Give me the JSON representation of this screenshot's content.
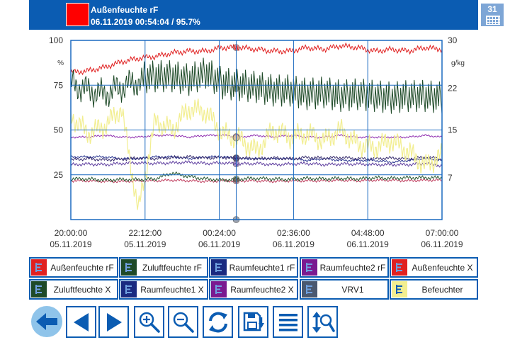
{
  "header": {
    "title": "Außenfeuchte rF",
    "subtitle": "06.11.2019 00:54:04 / 95.7%",
    "swatch_color": "#ff0000",
    "calendar_day": "31",
    "calendar_icon": "calendar-icon"
  },
  "chart_data": {
    "type": "line",
    "title": "",
    "left_axis": {
      "unit": "%",
      "range": [
        0,
        100
      ],
      "ticks": [
        "100",
        "75",
        "50",
        "25"
      ]
    },
    "right_axis": {
      "unit": "g/kg",
      "range": [
        0,
        30
      ],
      "ticks": [
        "30",
        "22",
        "15",
        "7"
      ]
    },
    "x_range": [
      "05.11.2019 20:00:00",
      "06.11.2019 07:00:00"
    ],
    "x_ticks": [
      {
        "time": "20:00:00",
        "date": "05.11.2019"
      },
      {
        "time": "22:12:00",
        "date": "05.11.2019"
      },
      {
        "time": "00:24:00",
        "date": "06.11.2019"
      },
      {
        "time": "02:36:00",
        "date": "06.11.2019"
      },
      {
        "time": "04:48:00",
        "date": "06.11.2019"
      },
      {
        "time": "07:00:00",
        "date": "06.11.2019"
      }
    ],
    "grid": true,
    "cursor_time": "06.11.2019 00:54:04",
    "series": [
      {
        "name": "Außenfeuchte rF",
        "color": "#e02020",
        "axis": "left",
        "x": [
          0,
          0.5,
          1,
          1.5,
          2,
          2.5,
          3,
          3.5,
          4,
          4.5,
          5,
          5.5,
          6,
          6.5,
          7,
          7.5,
          8,
          8.5,
          9,
          9.5,
          10,
          10.5,
          11
        ],
        "values": [
          82,
          83,
          85,
          88,
          90,
          91,
          93,
          94,
          94,
          96,
          96,
          95,
          94,
          94,
          96,
          95,
          97,
          96,
          94,
          95,
          94,
          96,
          95
        ]
      },
      {
        "name": "Zuluftfeuchte rF",
        "color": "#1e4a28",
        "axis": "left",
        "x": [
          0,
          0.5,
          1,
          1.5,
          2,
          2.5,
          3,
          3.5,
          4,
          4.5,
          5,
          5.5,
          6,
          6.5,
          7,
          7.5,
          8,
          8.5,
          9,
          9.5,
          10,
          10.5,
          11
        ],
        "values": [
          76,
          72,
          70,
          74,
          77,
          78,
          78,
          76,
          80,
          74,
          73,
          72,
          70,
          70,
          68,
          69,
          67,
          68,
          67,
          66,
          67,
          67,
          66
        ]
      },
      {
        "name": "Raumfeuchte1 rF",
        "color": "#2a3590",
        "axis": "left",
        "x": [
          0,
          0.5,
          1,
          1.5,
          2,
          2.5,
          3,
          3.5,
          4,
          4.5,
          5,
          5.5,
          6,
          6.5,
          7,
          7.5,
          8,
          8.5,
          9,
          9.5,
          10,
          10.5,
          11
        ],
        "values": [
          35,
          35,
          35,
          34,
          34,
          35,
          35,
          34,
          35,
          35,
          34,
          34,
          34,
          34,
          33,
          34,
          33,
          33,
          33,
          32,
          33,
          34,
          33
        ]
      },
      {
        "name": "Raumfeuchte2 rF",
        "color": "#9030b0",
        "axis": "left",
        "x": [
          0,
          0.5,
          1,
          1.5,
          2,
          2.5,
          3,
          3.5,
          4,
          4.5,
          5,
          5.5,
          6,
          6.5,
          7,
          7.5,
          8,
          8.5,
          9,
          9.5,
          10,
          10.5,
          11
        ],
        "values": [
          46,
          46,
          47,
          46,
          46,
          47,
          47,
          46,
          47,
          47,
          46,
          47,
          46,
          47,
          46,
          46,
          47,
          46,
          46,
          46,
          46,
          47,
          46
        ]
      },
      {
        "name": "Außenfeuchte X",
        "color": "#c04060",
        "axis": "right",
        "x": [
          0,
          0.5,
          1,
          1.5,
          2,
          2.5,
          3,
          3.5,
          4,
          4.5,
          5,
          5.5,
          6,
          6.5,
          7,
          7.5,
          8,
          8.5,
          9,
          9.5,
          10,
          10.5,
          11
        ],
        "values": [
          6.5,
          6.5,
          6.4,
          6.4,
          6.5,
          6.5,
          6.6,
          6.5,
          6.4,
          6.5,
          6.5,
          6.5,
          6.4,
          6.5,
          6.5,
          6.5,
          6.6,
          6.5,
          6.6,
          6.6,
          6.5,
          6.6,
          6.6
        ]
      },
      {
        "name": "Zuluftfeuchte X",
        "color": "#2a5a34",
        "axis": "right",
        "x": [
          0,
          0.5,
          1,
          1.5,
          2,
          2.5,
          3,
          3.5,
          4,
          4.5,
          5,
          5.5,
          6,
          6.5,
          7,
          7.5,
          8,
          8.5,
          9,
          9.5,
          10,
          10.5,
          11
        ],
        "values": [
          6.8,
          6.8,
          6.6,
          6.7,
          6.7,
          6.8,
          7.8,
          7.2,
          6.8,
          6.6,
          6.8,
          6.9,
          6.8,
          6.7,
          6.9,
          6.8,
          6.9,
          6.8,
          7.0,
          6.9,
          7.0,
          7.0,
          7.0
        ]
      },
      {
        "name": "Raumfeuchte1 X",
        "color": "#3a3070",
        "axis": "right",
        "x": [
          0,
          0.5,
          1,
          1.5,
          2,
          2.5,
          3,
          3.5,
          4,
          4.5,
          5,
          5.5,
          6,
          6.5,
          7,
          7.5,
          8,
          8.5,
          9,
          9.5,
          10,
          10.5,
          11
        ],
        "values": [
          10.0,
          10.2,
          10.0,
          10.1,
          10.3,
          10.2,
          10.4,
          10.5,
          10.3,
          10.4,
          10.3,
          10.2,
          10.3,
          10.2,
          10.4,
          10.3,
          10.4,
          10.2,
          10.2,
          10.3,
          10.2,
          10.4,
          10.2
        ]
      },
      {
        "name": "Raumfeuchte2 X",
        "color": "#6040a0",
        "axis": "right",
        "x": [
          0,
          0.5,
          1,
          1.5,
          2,
          2.5,
          3,
          3.5,
          4,
          4.5,
          5,
          5.5,
          6,
          6.5,
          7,
          7.5,
          8,
          8.5,
          9,
          9.5,
          10,
          10.5,
          11
        ],
        "values": [
          9.2,
          9.3,
          9.2,
          9.4,
          9.5,
          9.4,
          9.5,
          9.6,
          9.4,
          9.5,
          9.3,
          9.4,
          9.2,
          9.3,
          9.4,
          9.2,
          9.3,
          9.3,
          9.2,
          9.2,
          9.2,
          9.4,
          9.0
        ]
      },
      {
        "name": "VRV1",
        "color": "#4a5870",
        "axis": "left",
        "x": [
          0,
          11
        ],
        "values": [
          0,
          0
        ]
      },
      {
        "name": "Befeuchter",
        "color": "#f2ee90",
        "axis": "left",
        "x": [
          0,
          0.5,
          1,
          1.5,
          2,
          2.5,
          3,
          3.5,
          4,
          4.5,
          5,
          5.5,
          6,
          6.5,
          7,
          7.5,
          8,
          8.5,
          9,
          9.5,
          10,
          10.5,
          11
        ],
        "values": [
          58,
          48,
          52,
          62,
          5,
          55,
          50,
          62,
          60,
          48,
          45,
          38,
          50,
          46,
          48,
          44,
          50,
          42,
          40,
          44,
          38,
          30,
          36
        ]
      }
    ]
  },
  "legend": [
    {
      "label": "Außenfeuchte rF",
      "color": "#e02020"
    },
    {
      "label": "Zuluftfeuchte rF",
      "color": "#1e4a28"
    },
    {
      "label": "Raumfeuchte1 rF",
      "color": "#1a2a80"
    },
    {
      "label": "Raumfeuchte2 rF",
      "color": "#7a1a90"
    },
    {
      "label": "Außenfeuchte X",
      "color": "#e02020"
    },
    {
      "label": "Zuluftfeuchte X",
      "color": "#1e4a28"
    },
    {
      "label": "Raumfeuchte1 X",
      "color": "#1a2a80"
    },
    {
      "label": "Raumfeuchte2 X",
      "color": "#7a1a90"
    },
    {
      "label": "VRV1",
      "color": "#4a5870"
    },
    {
      "label": "Befeuchter",
      "color": "#f2ee90"
    }
  ],
  "toolbar": {
    "icons": [
      "back-arrow-icon",
      "previous-arrow-icon",
      "next-arrow-icon",
      "zoom-in-icon",
      "zoom-out-icon",
      "refresh-icon",
      "save-export-icon",
      "list-icon",
      "vertical-zoom-icon"
    ]
  }
}
